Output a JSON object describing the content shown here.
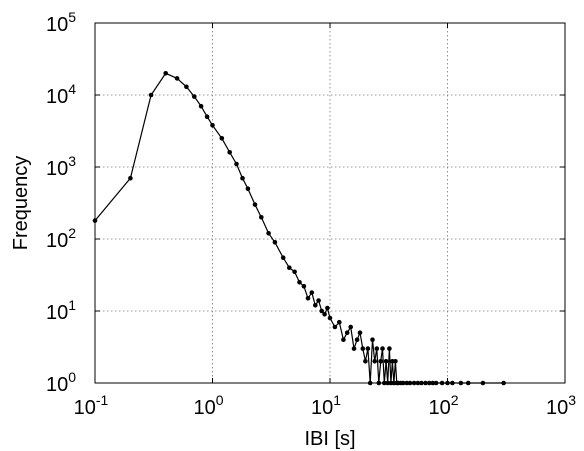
{
  "chart_data": {
    "type": "line",
    "title": "",
    "xlabel": "IBI [s]",
    "ylabel": "Frequency",
    "xscale": "log",
    "yscale": "log",
    "xlim": [
      0.1,
      1000
    ],
    "ylim": [
      1,
      100000
    ],
    "grid": true,
    "x_ticks": [
      {
        "base": "10",
        "exp": "-1"
      },
      {
        "base": "10",
        "exp": "0"
      },
      {
        "base": "10",
        "exp": "1"
      },
      {
        "base": "10",
        "exp": "2"
      },
      {
        "base": "10",
        "exp": "3"
      }
    ],
    "y_ticks": [
      {
        "base": "10",
        "exp": "0"
      },
      {
        "base": "10",
        "exp": "1"
      },
      {
        "base": "10",
        "exp": "2"
      },
      {
        "base": "10",
        "exp": "3"
      },
      {
        "base": "10",
        "exp": "4"
      },
      {
        "base": "10",
        "exp": "5"
      }
    ],
    "series": [
      {
        "color": "#000000",
        "marker": "dot",
        "x": [
          0.1,
          0.2,
          0.3,
          0.4,
          0.5,
          0.6,
          0.7,
          0.8,
          0.9,
          1.0,
          1.2,
          1.4,
          1.6,
          1.8,
          2.0,
          2.3,
          2.6,
          3.0,
          3.4,
          4.0,
          4.5,
          5.0,
          5.5,
          6.0,
          6.5,
          7.0,
          7.5,
          8.0,
          8.5,
          9.0,
          9.5,
          10,
          11,
          12,
          13,
          14,
          15,
          16,
          17,
          18,
          19,
          20,
          21,
          22,
          23,
          24,
          25,
          26,
          27,
          28,
          29,
          30,
          31,
          32,
          33,
          34,
          35,
          36,
          37,
          38,
          40,
          42,
          45,
          48,
          52,
          56,
          60,
          65,
          70,
          75,
          80,
          90,
          100,
          110,
          130,
          150,
          200,
          300
        ],
        "y": [
          180,
          700,
          10000,
          20000,
          17000,
          13000,
          9500,
          7000,
          5000,
          3800,
          2500,
          1600,
          1100,
          700,
          500,
          300,
          200,
          120,
          90,
          55,
          40,
          35,
          25,
          22,
          15,
          18,
          12,
          14,
          10,
          9,
          11,
          8,
          6,
          7,
          4,
          5,
          6,
          3,
          4,
          5,
          3,
          2,
          3,
          1,
          4,
          2,
          3,
          1,
          2,
          3,
          1,
          2,
          1,
          3,
          1,
          2,
          1,
          2,
          1,
          1,
          1,
          1,
          1,
          1,
          1,
          1,
          1,
          1,
          1,
          1,
          1,
          1,
          1,
          1,
          1,
          1,
          1,
          1
        ]
      }
    ]
  }
}
